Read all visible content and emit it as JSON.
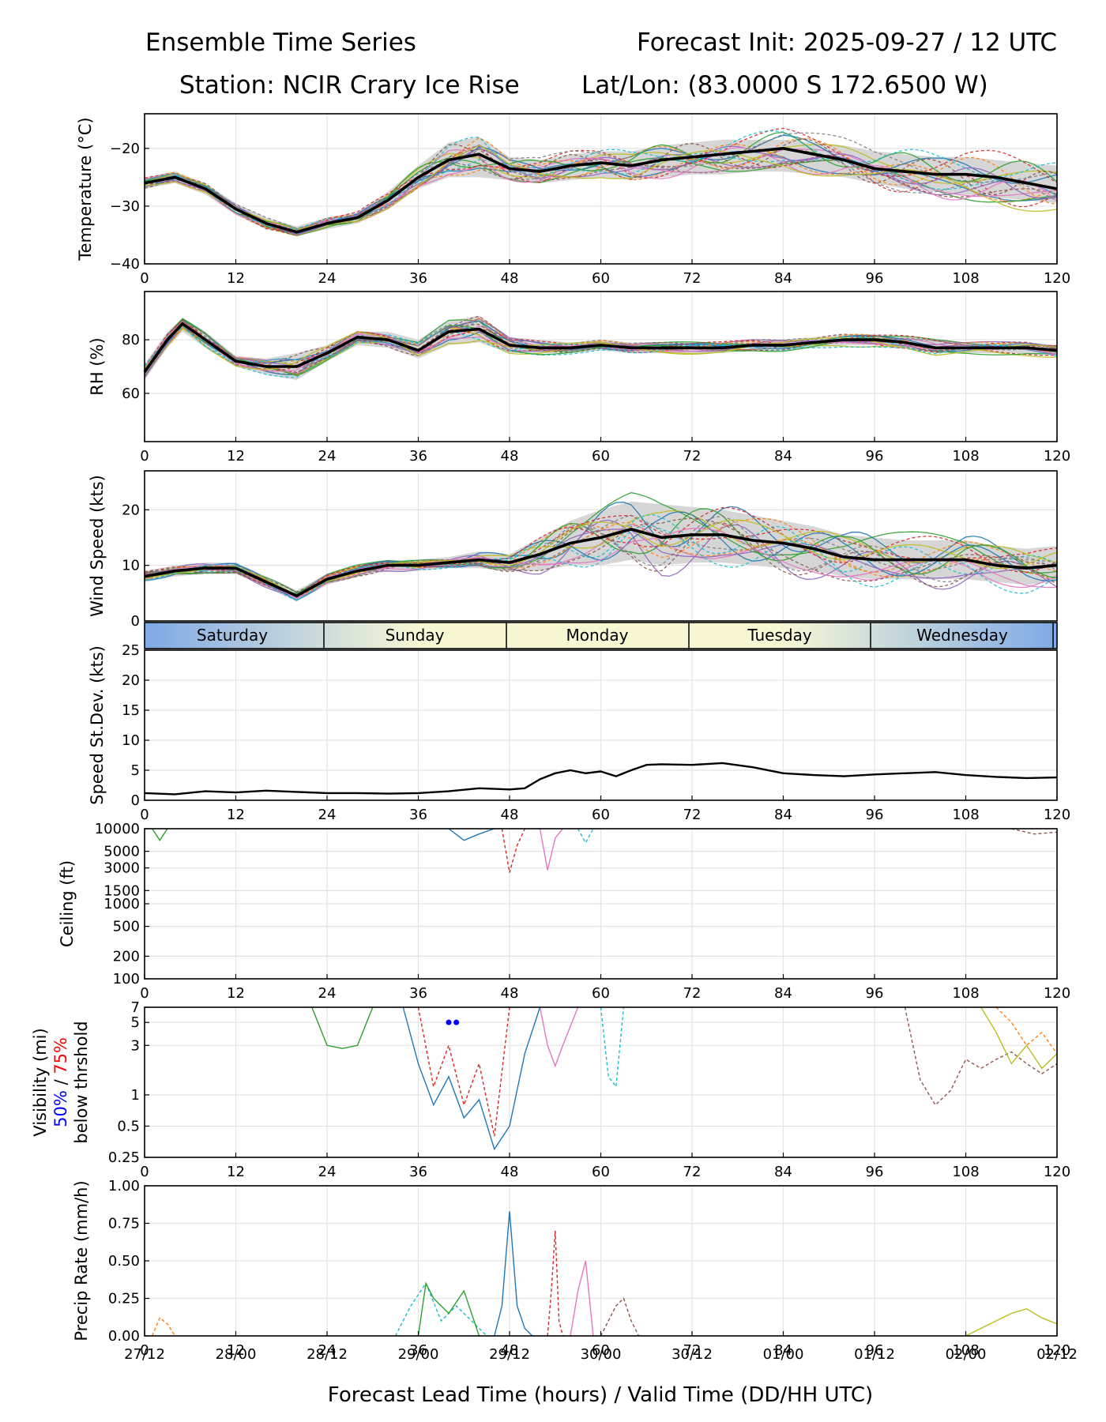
{
  "header": {
    "left_line1": "Ensemble Time Series",
    "right_line1": "Forecast Init: 2025-09-27 / 12 UTC",
    "left_line2": "Station: NCIR Crary Ice Rise",
    "right_line2": "Lat/Lon: (83.0000 S 172.6500 W)"
  },
  "x_axis": {
    "label": "Forecast Lead Time (hours) / Valid Time (DD/HH UTC)",
    "range": [
      0,
      120
    ],
    "ticks": [
      "0",
      "12",
      "24",
      "36",
      "48",
      "60",
      "72",
      "84",
      "96",
      "108",
      "120"
    ],
    "valid_times": [
      "27/12",
      "28/00",
      "28/12",
      "29/00",
      "29/12",
      "30/00",
      "30/12",
      "01/00",
      "01/12",
      "02/00",
      "02/12"
    ]
  },
  "day_strip": {
    "days": [
      "Saturday",
      "Sunday",
      "Monday",
      "Tuesday",
      "Wednesday"
    ],
    "colors": [
      "#7fa9e6",
      "#f7f7d4"
    ]
  },
  "colors": {
    "mean_line": "#000000",
    "spread_band": "#d6d6d6",
    "members": [
      "#1f77b4",
      "#ff7f0e",
      "#2ca02c",
      "#d62728",
      "#9467bd",
      "#8c564b",
      "#e377c2",
      "#7f7f7f",
      "#bcbd22",
      "#17becf"
    ],
    "vis_50": "#0000ff",
    "vis_75": "#ff0000"
  },
  "chart_data": [
    {
      "id": "temperature",
      "type": "line",
      "ylabel": "Temperature (°C)",
      "ylim": [
        -40,
        -14
      ],
      "yticks": [
        -40,
        -30,
        -20
      ],
      "ytick_labels": [
        "−40",
        "−30",
        "−20"
      ],
      "grid": true,
      "members": 20,
      "x": [
        0,
        4,
        8,
        12,
        16,
        20,
        24,
        28,
        32,
        36,
        40,
        44,
        48,
        52,
        56,
        60,
        64,
        68,
        72,
        76,
        80,
        84,
        88,
        92,
        96,
        100,
        104,
        108,
        112,
        116,
        120
      ],
      "mean": [
        -26,
        -25,
        -27,
        -30.5,
        -33,
        -34.5,
        -33,
        -32,
        -29,
        -25,
        -22,
        -21,
        -23.5,
        -24,
        -23,
        -22.5,
        -23,
        -22,
        -21.5,
        -21,
        -20.5,
        -20,
        -21,
        -22,
        -23.5,
        -24,
        -24.5,
        -24.5,
        -25,
        -26,
        -27
      ],
      "spread_low": [
        -27,
        -26,
        -28,
        -31.5,
        -34,
        -35,
        -34,
        -33,
        -30.5,
        -27,
        -25,
        -25,
        -25.5,
        -26,
        -25.5,
        -25,
        -25.5,
        -25,
        -24.5,
        -24.5,
        -24,
        -24,
        -24.5,
        -25,
        -26,
        -27,
        -27.5,
        -28,
        -28.5,
        -29,
        -29.5
      ],
      "spread_high": [
        -25,
        -24,
        -26,
        -29.5,
        -32,
        -33.5,
        -32,
        -31,
        -27.5,
        -23,
        -19,
        -18,
        -21.5,
        -22,
        -21,
        -20.5,
        -20.5,
        -19.5,
        -19,
        -18.5,
        -18.5,
        -18.5,
        -19,
        -19.5,
        -20.5,
        -21,
        -21.5,
        -21.5,
        -22,
        -22.5,
        -23
      ]
    },
    {
      "id": "rh",
      "type": "line",
      "ylabel": "RH (%)",
      "ylim": [
        42,
        98
      ],
      "yticks": [
        60,
        80
      ],
      "ytick_labels": [
        "60",
        "80"
      ],
      "grid": true,
      "members": 20,
      "x": [
        0,
        3,
        5,
        8,
        12,
        16,
        20,
        24,
        28,
        32,
        36,
        40,
        44,
        48,
        52,
        56,
        60,
        64,
        68,
        72,
        76,
        80,
        84,
        88,
        92,
        96,
        100,
        104,
        108,
        112,
        116,
        120
      ],
      "mean": [
        68,
        80,
        86,
        80,
        72,
        70,
        70,
        75,
        81,
        80,
        76,
        83,
        84,
        78,
        77,
        77,
        78,
        77,
        77,
        77,
        77,
        78,
        78,
        79,
        80,
        80,
        79,
        77,
        77,
        77,
        77,
        76
      ],
      "spread_low": [
        65,
        77,
        83,
        77,
        70,
        67,
        65,
        72,
        78,
        77,
        73,
        78,
        79,
        75,
        75,
        75,
        76,
        75,
        75,
        75,
        75,
        76,
        76,
        77,
        78,
        78,
        77,
        75,
        75,
        75,
        75,
        74
      ],
      "spread_high": [
        71,
        83,
        88,
        83,
        74,
        73,
        75,
        78,
        83,
        83,
        80,
        87,
        89,
        81,
        80,
        79,
        80,
        79,
        79,
        79,
        79,
        80,
        80,
        81,
        82,
        82,
        81,
        80,
        79,
        79,
        79,
        78
      ]
    },
    {
      "id": "wind",
      "type": "line",
      "ylabel": "Wind Speed (kts)",
      "ylim": [
        0,
        27
      ],
      "yticks": [
        0,
        10,
        20
      ],
      "ytick_labels": [
        "0",
        "10",
        "20"
      ],
      "grid": true,
      "members": 20,
      "x": [
        0,
        4,
        8,
        12,
        16,
        20,
        24,
        28,
        32,
        36,
        40,
        44,
        48,
        52,
        56,
        60,
        64,
        68,
        72,
        76,
        80,
        84,
        88,
        92,
        96,
        100,
        104,
        108,
        112,
        116,
        120
      ],
      "mean": [
        8,
        9,
        9.5,
        9.5,
        7,
        4.5,
        7.5,
        9,
        10,
        10,
        10.5,
        11,
        10.5,
        12,
        14,
        15,
        16.5,
        15,
        15.5,
        15.5,
        14.5,
        14,
        13,
        11.5,
        11,
        11,
        11,
        11,
        10,
        9.5,
        10
      ],
      "spread_low": [
        7,
        8,
        8.5,
        8.5,
        6,
        3.5,
        6.5,
        8,
        9,
        9,
        9.5,
        9.5,
        9,
        9,
        10,
        10,
        11,
        10,
        10.5,
        10.5,
        10,
        9.5,
        9,
        8,
        7.5,
        7.5,
        7.5,
        7.5,
        7,
        6.5,
        7
      ],
      "spread_high": [
        9,
        10,
        10.5,
        10.5,
        8,
        5.5,
        8.5,
        10,
        11,
        11,
        11.5,
        12.5,
        12,
        15,
        18,
        20,
        21.5,
        21,
        20.5,
        20,
        19,
        18,
        17,
        15.5,
        15,
        14.5,
        14.5,
        14.5,
        13.5,
        13,
        13.5
      ]
    },
    {
      "id": "speed_sd",
      "type": "line",
      "ylabel": "Speed St.Dev. (kts)",
      "ylim": [
        0,
        25
      ],
      "yticks": [
        0,
        5,
        10,
        15,
        20,
        25
      ],
      "ytick_labels": [
        "0",
        "5",
        "10",
        "15",
        "20",
        "25"
      ],
      "grid": true,
      "x": [
        0,
        4,
        8,
        12,
        16,
        20,
        24,
        28,
        32,
        36,
        40,
        44,
        48,
        50,
        52,
        54,
        56,
        58,
        60,
        62,
        64,
        66,
        68,
        72,
        76,
        80,
        84,
        88,
        92,
        96,
        100,
        104,
        108,
        112,
        116,
        120
      ],
      "values": [
        1.2,
        1.0,
        1.5,
        1.3,
        1.6,
        1.4,
        1.2,
        1.2,
        1.1,
        1.2,
        1.5,
        2.0,
        1.8,
        2.0,
        3.5,
        4.5,
        5.0,
        4.5,
        4.8,
        4.0,
        5.0,
        5.9,
        6.0,
        5.9,
        6.2,
        5.5,
        4.5,
        4.2,
        4.0,
        4.3,
        4.5,
        4.7,
        4.2,
        3.9,
        3.7,
        3.8
      ]
    },
    {
      "id": "ceiling",
      "type": "line",
      "ylabel": "Ceiling (ft)",
      "scale": "log",
      "ylim": [
        100,
        10000
      ],
      "yticks": [
        100,
        200,
        500,
        1000,
        1500,
        3000,
        5000,
        10000
      ],
      "ytick_labels": [
        "100",
        "200",
        "500",
        "1000",
        "1500",
        "3000",
        "5000",
        "10000"
      ],
      "grid": true,
      "traces": [
        {
          "x": [
            40,
            42,
            44,
            46
          ],
          "values": [
            10000,
            7000,
            8500,
            10000
          ]
        },
        {
          "x": [
            47,
            48,
            49,
            50
          ],
          "values": [
            10000,
            2600,
            6000,
            10000
          ]
        },
        {
          "x": [
            52,
            53,
            54,
            55
          ],
          "values": [
            10000,
            2800,
            7500,
            10000
          ]
        },
        {
          "x": [
            57,
            58,
            59
          ],
          "values": [
            10000,
            6500,
            10000
          ]
        },
        {
          "x": [
            1,
            2,
            3
          ],
          "values": [
            10000,
            7000,
            10000
          ]
        },
        {
          "x": [
            114,
            117,
            120
          ],
          "values": [
            10000,
            8500,
            9000
          ]
        }
      ]
    },
    {
      "id": "visibility",
      "type": "line",
      "ylabel": "Visibility (mi)",
      "ylabel_50": "50%",
      "ylabel_sep": " / ",
      "ylabel_75": "75%",
      "ylabel_sub": "below thrshold",
      "scale": "log",
      "ylim": [
        0.25,
        7
      ],
      "yticks": [
        0.25,
        0.5,
        1,
        3,
        5,
        7
      ],
      "ytick_labels": [
        "0.25",
        "0.5",
        "1",
        "3",
        "5",
        "7"
      ],
      "grid": true,
      "threshold_marks": [
        {
          "x": 40,
          "value": 5
        },
        {
          "x": 41,
          "value": 5
        }
      ],
      "traces": [
        {
          "x": [
            34,
            36,
            38,
            40,
            42,
            44,
            46,
            48,
            50,
            52
          ],
          "values": [
            7,
            2,
            0.8,
            1.5,
            0.6,
            0.9,
            0.3,
            0.5,
            2.5,
            7
          ]
        },
        {
          "x": [
            36,
            38,
            40,
            42,
            44,
            46,
            48
          ],
          "values": [
            7,
            1.2,
            3,
            0.8,
            2,
            0.4,
            7
          ]
        },
        {
          "x": [
            52,
            53,
            54,
            55,
            57
          ],
          "values": [
            7,
            3,
            1.9,
            3,
            7
          ]
        },
        {
          "x": [
            60,
            61,
            62,
            63
          ],
          "values": [
            7,
            1.5,
            1.2,
            7
          ]
        },
        {
          "x": [
            22,
            24,
            26,
            28,
            30
          ],
          "values": [
            7,
            3,
            2.8,
            3,
            7
          ]
        },
        {
          "x": [
            100,
            102,
            104,
            106,
            108,
            110,
            112,
            114,
            116,
            118,
            120
          ],
          "values": [
            7,
            1.4,
            0.8,
            1.1,
            2.2,
            1.8,
            2.2,
            2.6,
            2.0,
            1.6,
            2.0
          ]
        },
        {
          "x": [
            110,
            112,
            114,
            116,
            118,
            120
          ],
          "values": [
            7,
            4,
            2,
            3,
            1.8,
            2.5
          ]
        },
        {
          "x": [
            112,
            114,
            116,
            118,
            120
          ],
          "values": [
            7,
            5,
            3,
            4,
            2.5
          ]
        }
      ]
    },
    {
      "id": "precip",
      "type": "line",
      "ylabel": "Precip Rate (mm/h)",
      "ylim": [
        0,
        1
      ],
      "yticks": [
        0,
        0.25,
        0.5,
        0.75,
        1
      ],
      "ytick_labels": [
        "0.00",
        "0.25",
        "0.50",
        "0.75",
        "1.00"
      ],
      "grid": true,
      "traces": [
        {
          "x": [
            46,
            47,
            48,
            49,
            50,
            51
          ],
          "values": [
            0,
            0.2,
            0.83,
            0.2,
            0.05,
            0
          ]
        },
        {
          "x": [
            53,
            53.5,
            54,
            54.5,
            55
          ],
          "values": [
            0,
            0.3,
            0.7,
            0.1,
            0
          ]
        },
        {
          "x": [
            56,
            57,
            58,
            59
          ],
          "values": [
            0,
            0.3,
            0.5,
            0
          ]
        },
        {
          "x": [
            33,
            35,
            37,
            39,
            41,
            43,
            45
          ],
          "values": [
            0,
            0.2,
            0.35,
            0.1,
            0.2,
            0.1,
            0
          ]
        },
        {
          "x": [
            36,
            37,
            38,
            40,
            42,
            44
          ],
          "values": [
            0,
            0.35,
            0.25,
            0.15,
            0.3,
            0
          ]
        },
        {
          "x": [
            60,
            62,
            63,
            64,
            65
          ],
          "values": [
            0,
            0.2,
            0.25,
            0.1,
            0
          ]
        },
        {
          "x": [
            108,
            110,
            112,
            114,
            116,
            118,
            120
          ],
          "values": [
            0,
            0.05,
            0.1,
            0.15,
            0.18,
            0.12,
            0.08
          ]
        },
        {
          "x": [
            1,
            2,
            3,
            4
          ],
          "values": [
            0,
            0.12,
            0.08,
            0
          ]
        }
      ]
    }
  ]
}
